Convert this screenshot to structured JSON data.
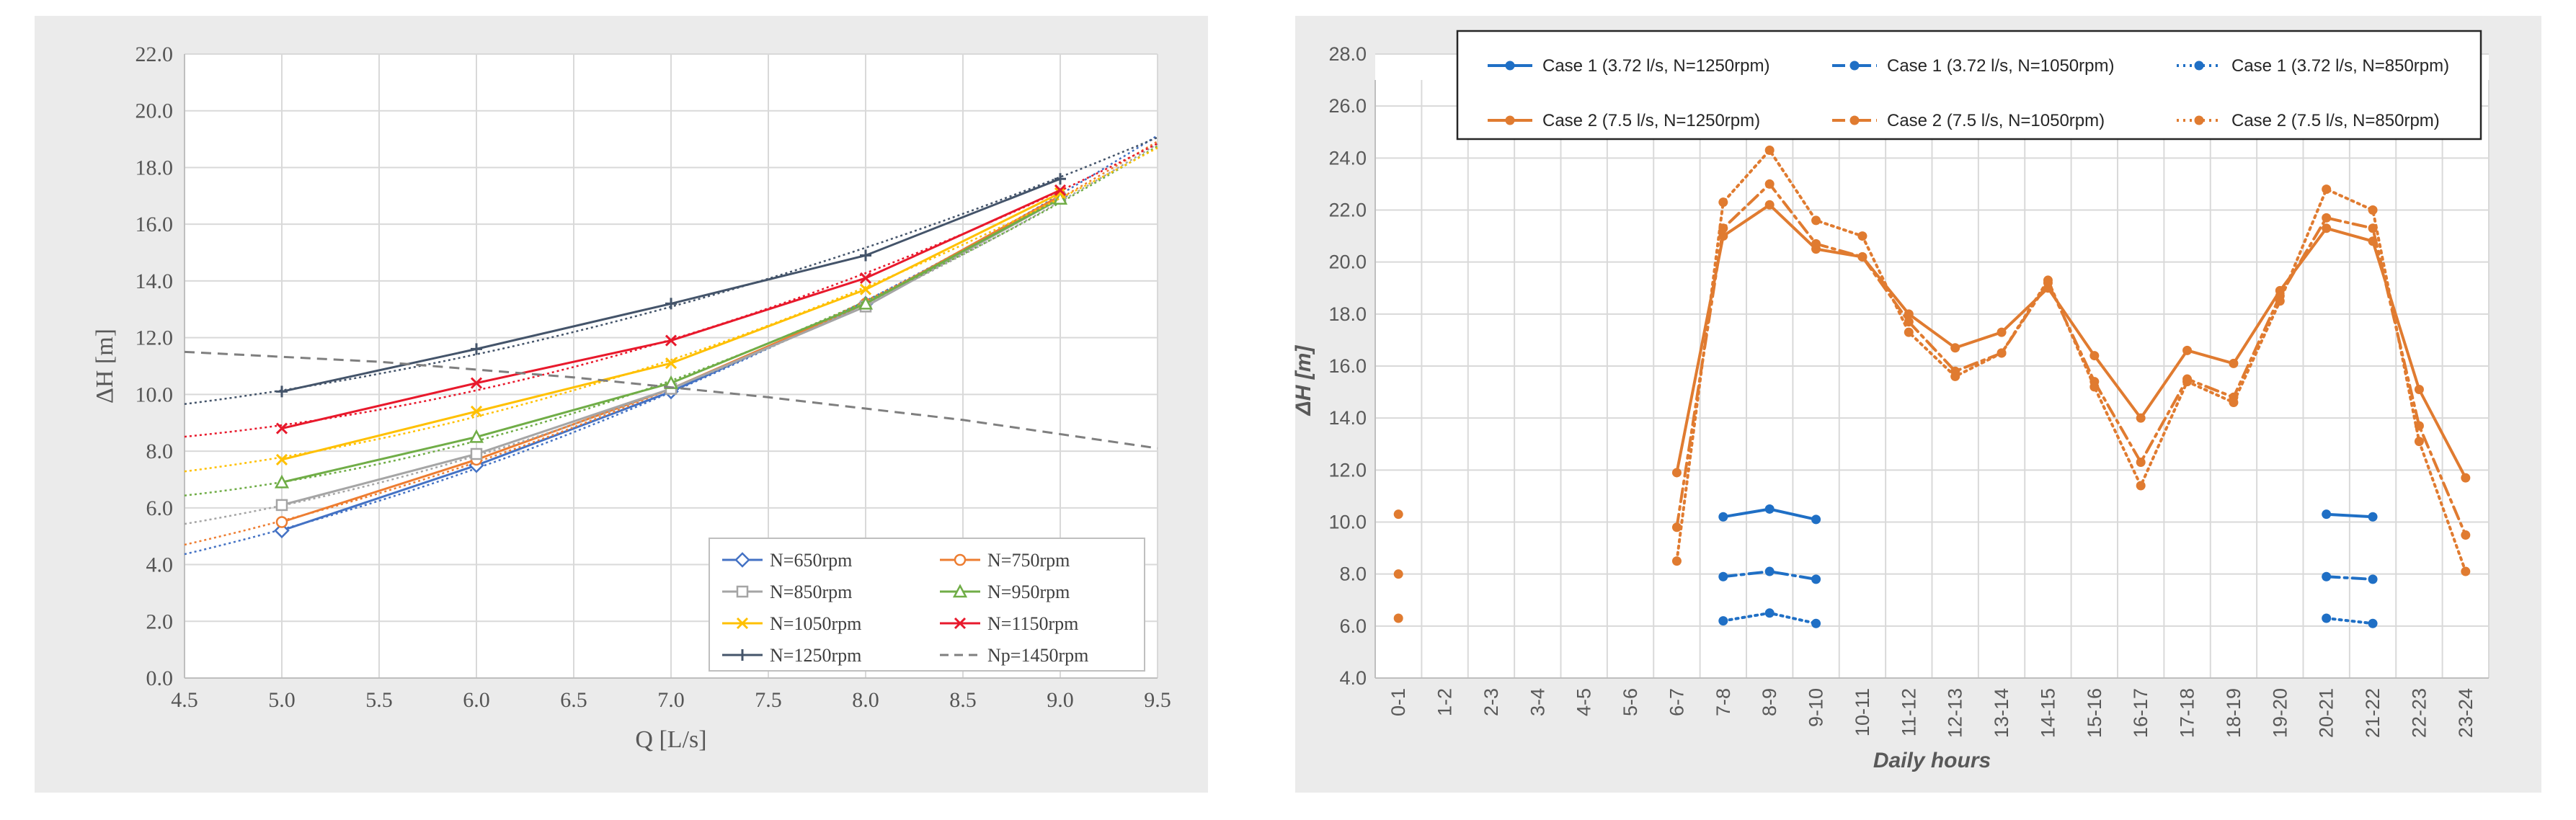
{
  "chart_data": [
    {
      "type": "line",
      "xlabel": "Q [L/s]",
      "ylabel": "ΔH [m]",
      "xlim": [
        4.5,
        9.5
      ],
      "ylim": [
        0,
        22
      ],
      "x_ticks": [
        "4.5",
        "5.0",
        "5.5",
        "6.0",
        "6.5",
        "7.0",
        "7.5",
        "8.0",
        "8.5",
        "9.0",
        "9.5"
      ],
      "y_ticks": [
        "0.0",
        "2.0",
        "4.0",
        "6.0",
        "8.0",
        "10.0",
        "12.0",
        "14.0",
        "16.0",
        "18.0",
        "20.0",
        "22.0"
      ],
      "grid": true,
      "legend_position": "bottom-right",
      "series": [
        {
          "name": "N=650rpm",
          "color": "#4472c4",
          "marker": "diamond",
          "x": [
            5,
            6,
            7,
            8,
            9
          ],
          "y": [
            5.2,
            7.5,
            10.1,
            13.2,
            17.0
          ],
          "trend": [
            4.35,
            19.2
          ]
        },
        {
          "name": "N=750rpm",
          "color": "#ed7d31",
          "marker": "circle",
          "x": [
            5,
            6,
            7,
            8,
            9
          ],
          "y": [
            5.5,
            7.7,
            10.2,
            13.2,
            17.0
          ],
          "trend": [
            4.7,
            18.9
          ]
        },
        {
          "name": "N=850rpm",
          "color": "#a5a5a5",
          "marker": "square",
          "x": [
            5,
            6,
            7,
            8,
            9
          ],
          "y": [
            6.1,
            7.9,
            10.2,
            13.1,
            16.9
          ],
          "trend": [
            5.4,
            18.8
          ]
        },
        {
          "name": "N=950rpm",
          "color": "#70ad47",
          "marker": "triangle",
          "x": [
            5,
            6,
            7,
            8,
            9
          ],
          "y": [
            6.9,
            8.5,
            10.4,
            13.2,
            16.9
          ],
          "trend": [
            6.4,
            18.7
          ]
        },
        {
          "name": "N=1050rpm",
          "color": "#ffc000",
          "marker": "x",
          "x": [
            5,
            6,
            7,
            8,
            9
          ],
          "y": [
            7.7,
            9.4,
            11.1,
            13.7,
            17.1
          ],
          "trend": [
            7.3,
            18.6
          ]
        },
        {
          "name": "N=1150rpm",
          "color": "#e8192c",
          "marker": "x",
          "x": [
            5,
            6,
            7,
            8,
            9
          ],
          "y": [
            8.8,
            10.4,
            11.9,
            14.1,
            17.2
          ],
          "trend": [
            8.5,
            18.9
          ]
        },
        {
          "name": "N=1250rpm",
          "color": "#44546a",
          "marker": "plus",
          "x": [
            5,
            6,
            7,
            8,
            9
          ],
          "y": [
            10.1,
            11.6,
            13.2,
            14.9,
            17.6
          ],
          "trend": [
            9.6,
            19.2
          ]
        },
        {
          "name": "Np=1450rpm",
          "color": "#7f7f7f",
          "marker": "none",
          "dash": "dashed",
          "x": [
            4.5,
            5.5,
            6.5,
            7.5,
            8.5,
            9.5
          ],
          "y": [
            11.5,
            11.15,
            10.6,
            9.9,
            9.1,
            8.1
          ]
        }
      ]
    },
    {
      "type": "line",
      "xlabel": "Daily hours",
      "ylabel": "ΔH [m]",
      "ylim": [
        4,
        28
      ],
      "y_ticks": [
        "4.0",
        "6.0",
        "8.0",
        "10.0",
        "12.0",
        "14.0",
        "16.0",
        "18.0",
        "20.0",
        "22.0",
        "24.0",
        "26.0",
        "28.0"
      ],
      "categories": [
        "0-1",
        "1-2",
        "2-3",
        "3-4",
        "4-5",
        "5-6",
        "6-7",
        "7-8",
        "8-9",
        "9-10",
        "10-11",
        "11-12",
        "12-13",
        "13-14",
        "14-15",
        "15-16",
        "16-17",
        "17-18",
        "18-19",
        "19-20",
        "20-21",
        "21-22",
        "22-23",
        "23-24"
      ],
      "grid": true,
      "legend_position": "top",
      "series": [
        {
          "name": "Case 1 (3.72 l/s, N=1250rpm)",
          "color": "#1f6fc5",
          "dash": "solid",
          "values": [
            null,
            null,
            null,
            null,
            null,
            null,
            null,
            10.2,
            10.5,
            10.1,
            null,
            null,
            null,
            null,
            null,
            null,
            null,
            null,
            null,
            null,
            10.3,
            10.2,
            null,
            null
          ]
        },
        {
          "name": "Case 1 (3.72 l/s, N=1050rpm)",
          "color": "#1f6fc5",
          "dash": "dashdot",
          "values": [
            null,
            null,
            null,
            null,
            null,
            null,
            null,
            7.9,
            8.1,
            7.8,
            null,
            null,
            null,
            null,
            null,
            null,
            null,
            null,
            null,
            null,
            7.9,
            7.8,
            null,
            null
          ]
        },
        {
          "name": "Case 1 (3.72 l/s, N=850rpm)",
          "color": "#1f6fc5",
          "dash": "dotted",
          "values": [
            null,
            null,
            null,
            null,
            null,
            null,
            null,
            6.2,
            6.5,
            6.1,
            null,
            null,
            null,
            null,
            null,
            null,
            null,
            null,
            null,
            null,
            6.3,
            6.1,
            null,
            null
          ]
        },
        {
          "name": "Case 2 (7.5 l/s, N=1250rpm)",
          "color": "#e07b30",
          "dash": "solid",
          "values": [
            10.3,
            null,
            null,
            null,
            null,
            null,
            11.9,
            21.0,
            22.2,
            20.5,
            20.2,
            18.0,
            16.7,
            17.3,
            19.0,
            16.4,
            14.0,
            16.6,
            16.1,
            18.9,
            21.3,
            20.8,
            15.1,
            11.7
          ]
        },
        {
          "name": "Case 2 (7.5 l/s, N=1050rpm)",
          "color": "#e07b30",
          "dash": "dashdot",
          "values": [
            8.0,
            null,
            null,
            null,
            null,
            null,
            9.8,
            21.3,
            23.0,
            20.7,
            20.2,
            17.7,
            15.8,
            16.5,
            19.2,
            15.4,
            12.3,
            15.5,
            14.8,
            18.7,
            21.7,
            21.3,
            13.7,
            9.5
          ]
        },
        {
          "name": "Case 2 (7.5 l/s, N=850rpm)",
          "color": "#e07b30",
          "dash": "dotted",
          "values": [
            6.3,
            null,
            null,
            null,
            null,
            null,
            8.5,
            22.3,
            24.3,
            21.6,
            21.0,
            17.3,
            15.6,
            16.5,
            19.3,
            15.2,
            11.4,
            15.4,
            14.6,
            18.5,
            22.8,
            22.0,
            13.1,
            8.1
          ]
        }
      ]
    }
  ]
}
